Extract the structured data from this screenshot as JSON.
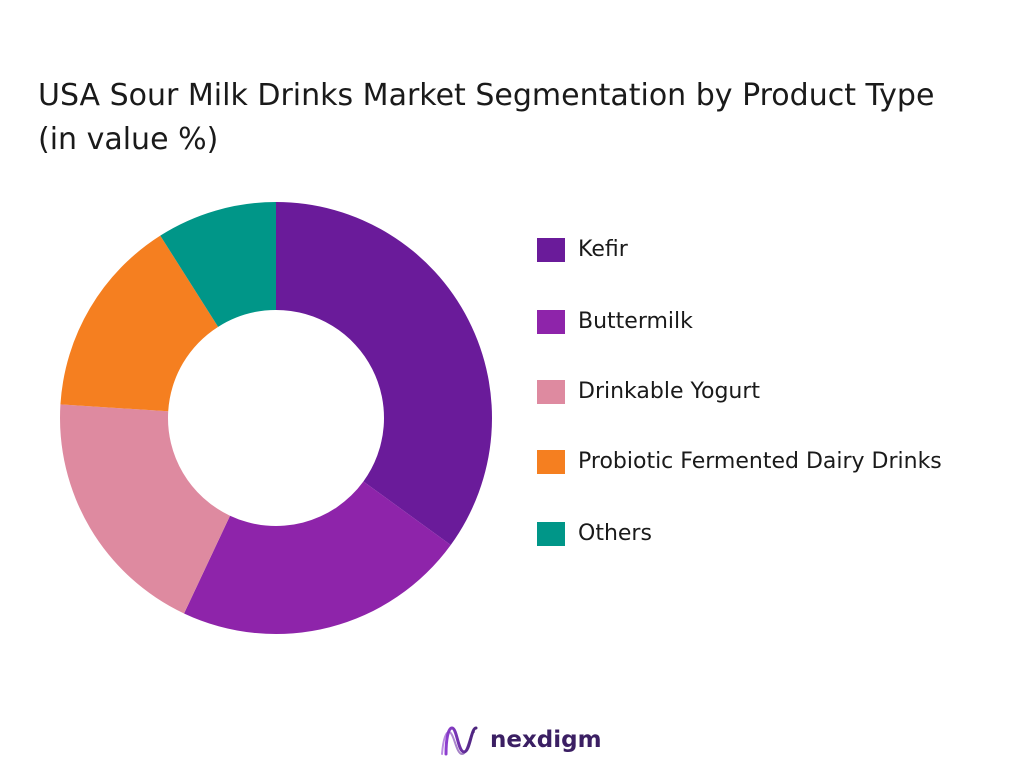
{
  "chart_data": {
    "type": "pie",
    "title": "USA Sour Milk Drinks Market Segmentation by Product Type (in value %)",
    "categories": [
      "Kefir",
      "Buttermilk",
      "Drinkable Yogurt",
      "Probiotic Fermented Dairy Drinks",
      "Others"
    ],
    "values": [
      35,
      22,
      19,
      15,
      9
    ],
    "colors": [
      "#6a1b9a",
      "#8e24aa",
      "#de8aa0",
      "#f57f20",
      "#009688"
    ],
    "legend_position": "right",
    "donut": true
  },
  "brand": {
    "name": "nexdigm",
    "icon": "nexdigm-logo-icon"
  }
}
